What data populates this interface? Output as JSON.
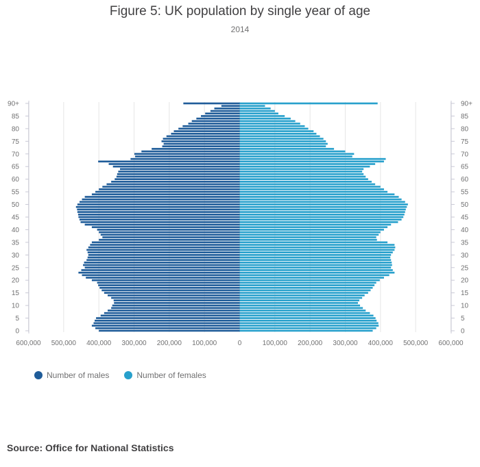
{
  "title": "Figure 5: UK population by single year of age",
  "subtitle": "2014",
  "source": "Source: Office for National Statistics",
  "colors": {
    "males": "#1f5c99",
    "females": "#27a0cc",
    "axis": "#c8c8d6",
    "grid": "#e6e6e6"
  },
  "legend": {
    "males": "Number of males",
    "females": "Number of females"
  },
  "chart_data": {
    "type": "bar",
    "orientation": "horizontal-population-pyramid",
    "title": "Figure 5: UK population by single year of age",
    "subtitle": "2014",
    "xlim": [
      -600000,
      600000
    ],
    "x_tick_labels": [
      "600,000",
      "500,000",
      "400,000",
      "300,000",
      "200,000",
      "100,000",
      "0",
      "100,000",
      "200,000",
      "300,000",
      "400,000",
      "500,000",
      "600,000"
    ],
    "y_tick_labels": [
      "0",
      "5",
      "10",
      "15",
      "20",
      "25",
      "30",
      "35",
      "40",
      "45",
      "50",
      "55",
      "60",
      "65",
      "70",
      "75",
      "80",
      "85",
      "90+"
    ],
    "categories": [
      "0",
      "1",
      "2",
      "3",
      "4",
      "5",
      "6",
      "7",
      "8",
      "9",
      "10",
      "11",
      "12",
      "13",
      "14",
      "15",
      "16",
      "17",
      "18",
      "19",
      "20",
      "21",
      "22",
      "23",
      "24",
      "25",
      "26",
      "27",
      "28",
      "29",
      "30",
      "31",
      "32",
      "33",
      "34",
      "35",
      "36",
      "37",
      "38",
      "39",
      "40",
      "41",
      "42",
      "43",
      "44",
      "45",
      "46",
      "47",
      "48",
      "49",
      "50",
      "51",
      "52",
      "53",
      "54",
      "55",
      "56",
      "57",
      "58",
      "59",
      "60",
      "61",
      "62",
      "63",
      "64",
      "65",
      "66",
      "67",
      "68",
      "69",
      "70",
      "71",
      "72",
      "73",
      "74",
      "75",
      "76",
      "77",
      "78",
      "79",
      "80",
      "81",
      "82",
      "83",
      "84",
      "85",
      "86",
      "87",
      "88",
      "89",
      "90+"
    ],
    "series": [
      {
        "name": "Number of males",
        "side": "left",
        "values": [
          400000,
          410000,
          420000,
          415000,
          412000,
          408000,
          395000,
          385000,
          375000,
          365000,
          362000,
          357000,
          358000,
          365000,
          375000,
          385000,
          392000,
          398000,
          402000,
          405000,
          420000,
          437000,
          448000,
          458000,
          450000,
          440000,
          445000,
          442000,
          435000,
          432000,
          430000,
          432000,
          435000,
          430000,
          425000,
          420000,
          400000,
          390000,
          395000,
          400000,
          405000,
          420000,
          440000,
          452000,
          455000,
          458000,
          459000,
          461000,
          462000,
          465000,
          461000,
          455000,
          448000,
          440000,
          420000,
          410000,
          400000,
          390000,
          378000,
          365000,
          355000,
          350000,
          348000,
          345000,
          340000,
          360000,
          372000,
          402000,
          310000,
          297000,
          299000,
          279000,
          250000,
          220000,
          216000,
          222000,
          218000,
          208000,
          195000,
          187000,
          174000,
          162000,
          146000,
          136000,
          123000,
          110000,
          98000,
          83000,
          72000,
          52000,
          160000
        ]
      },
      {
        "name": "Number of females",
        "side": "right",
        "values": [
          378000,
          388000,
          395000,
          394000,
          389000,
          386000,
          380000,
          370000,
          358000,
          350000,
          342000,
          336000,
          340000,
          348000,
          355000,
          365000,
          372000,
          378000,
          383000,
          388000,
          398000,
          410000,
          425000,
          440000,
          435000,
          430000,
          433000,
          432000,
          430000,
          428000,
          430000,
          435000,
          440000,
          442000,
          440000,
          420000,
          390000,
          388000,
          395000,
          400000,
          410000,
          420000,
          430000,
          450000,
          460000,
          465000,
          468000,
          470000,
          472000,
          475000,
          478000,
          470000,
          460000,
          452000,
          440000,
          420000,
          410000,
          400000,
          385000,
          375000,
          365000,
          358000,
          352000,
          348000,
          352000,
          370000,
          385000,
          410000,
          415000,
          320000,
          325000,
          300000,
          268000,
          245000,
          250000,
          245000,
          238000,
          228000,
          218000,
          210000,
          195000,
          185000,
          172000,
          158000,
          145000,
          128000,
          110000,
          100000,
          88000,
          72000,
          392000
        ]
      }
    ],
    "grid": true,
    "legend_position": "bottom-left"
  }
}
